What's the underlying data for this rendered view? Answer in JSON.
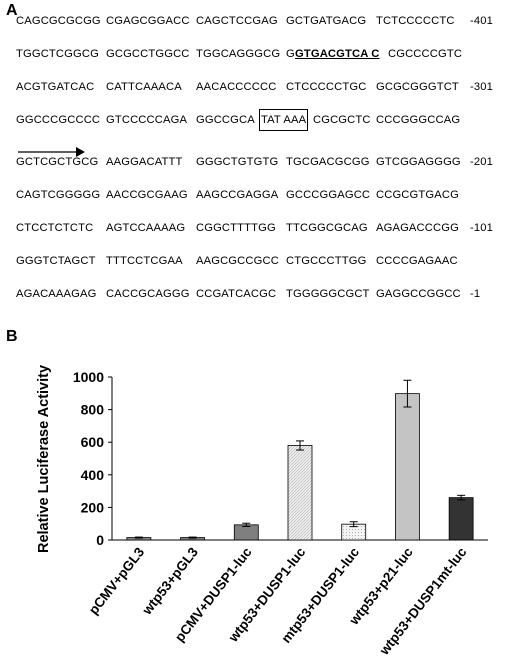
{
  "panel_a": {
    "label": "A",
    "lines": [
      {
        "groups": [
          "CAGCGCGCGG",
          "CGAGCGGACC",
          "CAGCTCCGAG",
          "GCTGATGACG",
          "TCTCCCCCTC"
        ],
        "pos": "-401"
      },
      {
        "groups": [
          "TGGCTCGGCG",
          "GCGCCTGGCC",
          "TGGCAGGGCG",
          "G",
          "GTGACGTCA C",
          "CGCCCCGTC"
        ],
        "pos": ""
      },
      {
        "groups": [
          "ACGTGATCAC",
          "CATTCAAACA",
          "AACACCCCCC",
          "CTCCCCCTGC",
          "GCGCGGGTCT"
        ],
        "pos": "-301"
      },
      {
        "groups": [
          "GGCCCGCCCC",
          "GTCCCCCAGA",
          "GGCCGCA",
          "TAT AAA",
          "CGCGCTC",
          "CCCGGGCCAG"
        ],
        "pos": ""
      },
      {
        "groups": [
          "GCTCGCTGCG",
          "AAGGACATTT",
          "GGGCTGTGTG",
          "TGCGACGCGG",
          "GTCGGAGGGG"
        ],
        "pos": "-201"
      },
      {
        "groups": [
          "CAGTCGGGGG",
          "AACCGCGAAG",
          "AAGCCGAGGA",
          "GCCCGGAGCC",
          "CCGCGTGACG"
        ],
        "pos": ""
      },
      {
        "groups": [
          "CTCCTCTCTC",
          "AGTCCAAAAG",
          "CGGCTTTTGG",
          "TTCGGCGCAG",
          "AGAGACCCGG"
        ],
        "pos": "-101"
      },
      {
        "groups": [
          "GGGTCTAGCT",
          "TTTCCTCGAA",
          "AAGCGCCGCC",
          "CTGCCCTTGG",
          "CCCCGAGAAC"
        ],
        "pos": ""
      },
      {
        "groups": [
          "AGACAAAGAG",
          "CACCGCAGGG",
          "CCGATCACGC",
          "TGGGGGCGCT",
          "GAGGCCGGCC"
        ],
        "pos": "-1"
      }
    ]
  },
  "panel_b": {
    "label": "B"
  },
  "chart_data": {
    "type": "bar",
    "ylabel": "Relative Luciferase Activity",
    "xlabel": "",
    "ylim": [
      0,
      1000
    ],
    "yticks": [
      "0",
      "200",
      "400",
      "600",
      "800",
      "1000"
    ],
    "grid": false,
    "categories": [
      "pCMV+pGL3",
      "wtp53+pGL3",
      "pCMV+DUSP1-luc",
      "wtp53+DUSP1-luc",
      "mtp53+DUSP1-luc",
      "wtp53+p21-luc",
      "wtp53+DUSP1mt-luc"
    ],
    "values": [
      15,
      15,
      93,
      580,
      97,
      898,
      260
    ],
    "errors": [
      3,
      3,
      10,
      28,
      15,
      82,
      14
    ],
    "bar_colors": [
      "#8a8a8a",
      "#9a9a9a",
      "#7f7f7f",
      "#dcdcdc",
      "#ececec",
      "#c4c4c4",
      "#333333"
    ]
  }
}
